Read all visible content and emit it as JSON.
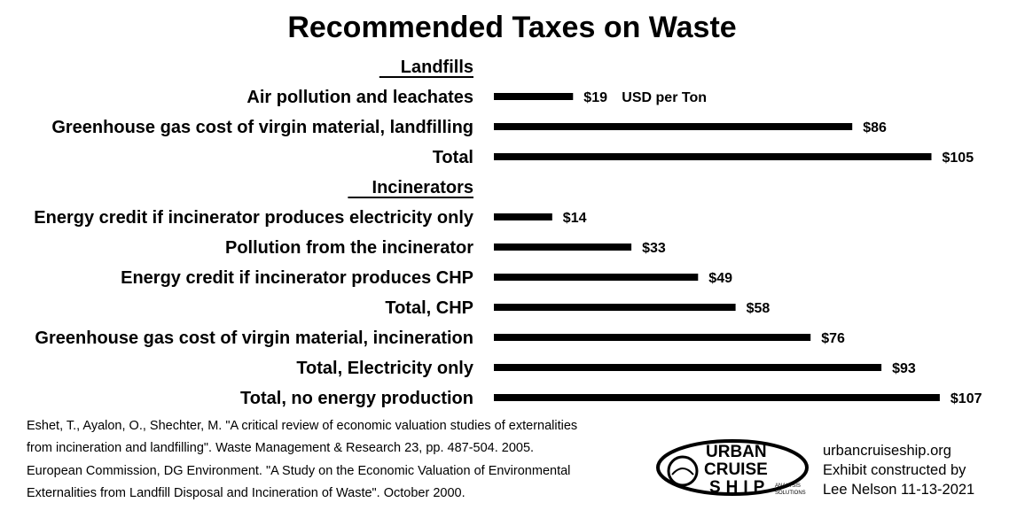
{
  "chart_data": {
    "type": "bar",
    "title": "Recommended Taxes on Waste",
    "orientation": "horizontal",
    "unit_note": "USD per Ton",
    "groups": [
      {
        "heading": "Landfills",
        "rows": [
          {
            "label": "Air pollution and leachates",
            "value": 19,
            "value_label": "$19"
          },
          {
            "label": "Greenhouse gas cost of virgin material, landfilling",
            "value": 86,
            "value_label": "$86"
          },
          {
            "label": "Total",
            "value": 105,
            "value_label": "$105"
          }
        ]
      },
      {
        "heading": "Incinerators",
        "rows": [
          {
            "label": "Energy credit if incinerator produces electricity only",
            "value": 14,
            "value_label": "$14"
          },
          {
            "label": "Pollution from the incinerator",
            "value": 33,
            "value_label": "$33"
          },
          {
            "label": "Energy credit if incinerator produces CHP",
            "value": 49,
            "value_label": "$49"
          },
          {
            "label": "Total, CHP",
            "value": 58,
            "value_label": "$58"
          },
          {
            "label": "Greenhouse gas cost of virgin material, incineration",
            "value": 76,
            "value_label": "$76"
          },
          {
            "label": "Total, Electricity only",
            "value": 93,
            "value_label": "$93"
          },
          {
            "label": "Total, no energy production",
            "value": 107,
            "value_label": "$107"
          }
        ]
      }
    ],
    "xlim": [
      0,
      107
    ],
    "grid": false,
    "bar_color": "#000000"
  },
  "references": [
    " Eshet, T., Ayalon, O., Shechter, M. \"A critical review of economic valuation studies of externalities",
    "from incineration and landfilling\". Waste Management & Research 23, pp. 487-504. 2005.",
    "European Commission, DG Environment. \"A Study on the Economic Valuation of Environmental",
    "Externalities from Landfill Disposal and Incineration of Waste\". October 2000."
  ],
  "credit": {
    "site": "urbancruiseship.org",
    "line1": "Exhibit constructed by",
    "line2": "Lee Nelson 11-13-2021"
  },
  "logo": {
    "words": [
      "URBAN",
      "CRUISE",
      "SHIP"
    ],
    "tag": [
      "ANALYSIS",
      "SOLUTIONS"
    ]
  }
}
